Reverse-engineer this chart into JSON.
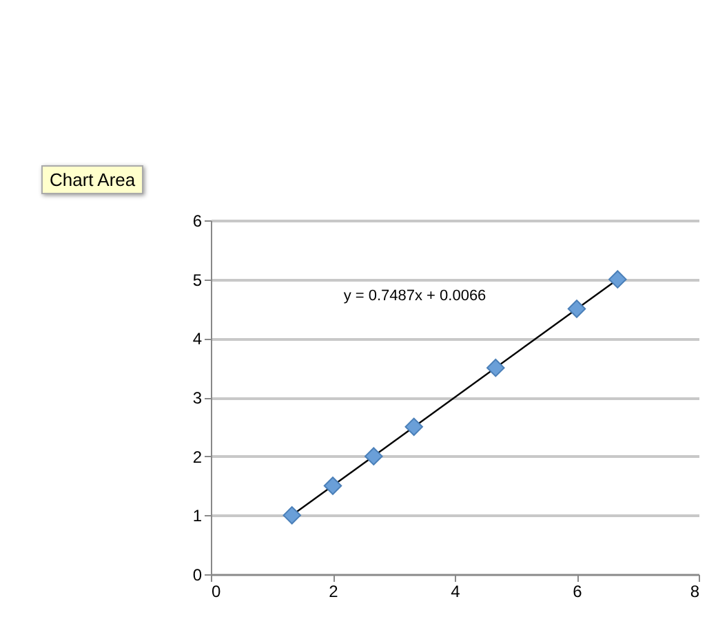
{
  "chart_data": {
    "type": "scatter",
    "x": [
      1.33,
      2,
      2.67,
      3.33,
      4.67,
      6,
      6.67
    ],
    "series": [
      {
        "color": "#6a9fd8",
        "values": [
          1,
          1.5,
          2,
          2.5,
          3.5,
          4.5,
          5
        ],
        "marker": "diamond"
      },
      {
        "type": "line",
        "color": "#000000",
        "x": [
          1.33,
          6.67
        ],
        "values": [
          1.0,
          5.0
        ]
      }
    ],
    "xlim": [
      0,
      8
    ],
    "xticks": [
      0,
      2,
      4,
      6,
      8
    ],
    "ylim": [
      0,
      6
    ],
    "yticks": [
      0,
      1,
      2,
      3,
      4,
      5,
      6
    ],
    "grid": "y",
    "annotations": [
      "y = 0.7487x + 0.0066",
      "Chart Area"
    ]
  }
}
